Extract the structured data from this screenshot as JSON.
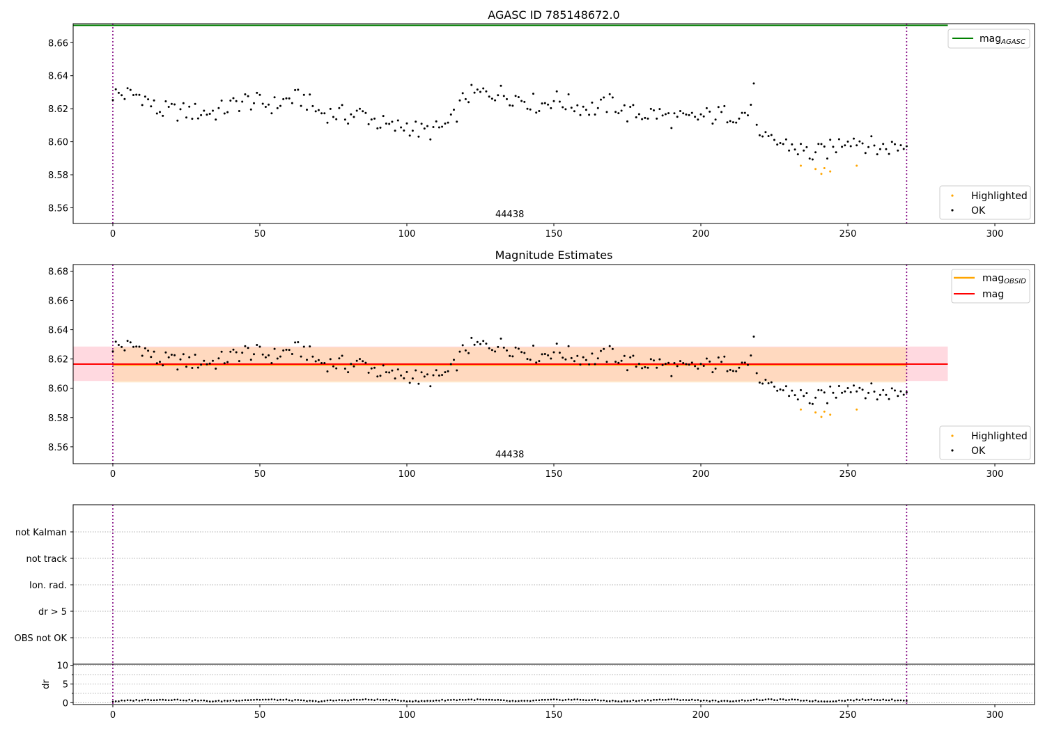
{
  "chart_data": [
    {
      "type": "scatter",
      "title": "AGASC ID 785148672.0",
      "xlim": [
        -13.5,
        313.5
      ],
      "ylim": [
        8.5505,
        8.6715
      ],
      "xticks": [
        0,
        50,
        100,
        150,
        200,
        250,
        300
      ],
      "yticks": [
        8.56,
        8.58,
        8.6,
        8.62,
        8.64,
        8.66
      ],
      "ytick_labels": [
        "8.56",
        "8.58",
        "8.60",
        "8.62",
        "8.64",
        "8.66"
      ],
      "annotation": "44438",
      "annotation_x": 135,
      "vlines": [
        0,
        270
      ],
      "hline": {
        "name": "mag_AGASC",
        "legend_main": "mag",
        "legend_sub": "AGASC",
        "y": 8.6705,
        "x_range": [
          -13.5,
          284
        ],
        "color": "#008000"
      },
      "legend_lines_position": "upper right",
      "legend_points_position": "lower right",
      "series": [
        {
          "name": "Highlighted",
          "color": "#ffa500"
        },
        {
          "name": "OK",
          "color": "#000000"
        }
      ],
      "grid": false
    },
    {
      "type": "scatter",
      "title": "Magnitude Estimates",
      "xlim": [
        -13.5,
        313.5
      ],
      "ylim": [
        8.5485,
        8.6845
      ],
      "xticks": [
        0,
        50,
        100,
        150,
        200,
        250,
        300
      ],
      "yticks": [
        8.56,
        8.58,
        8.6,
        8.62,
        8.64,
        8.66,
        8.68
      ],
      "ytick_labels": [
        "8.56",
        "8.58",
        "8.60",
        "8.62",
        "8.64",
        "8.66",
        "8.68"
      ],
      "annotation": "44438",
      "annotation_x": 135,
      "vlines": [
        0,
        270
      ],
      "mag_obsid": {
        "legend_main": "mag",
        "legend_sub": "OBSID",
        "y": 8.616,
        "band": [
          8.604,
          8.628
        ],
        "x_range": [
          0,
          270
        ],
        "color": "#ffa500"
      },
      "mag": {
        "legend_main": "mag",
        "y": 8.6165,
        "band": [
          8.605,
          8.6285
        ],
        "x_range": [
          -13.5,
          284
        ],
        "color": "#ff0000"
      },
      "legend_lines_position": "upper right",
      "legend_points_position": "lower right",
      "series": [
        {
          "name": "Highlighted",
          "color": "#ffa500"
        },
        {
          "name": "OK",
          "color": "#000000"
        }
      ],
      "grid": false
    },
    {
      "type": "scatter",
      "title": "",
      "xlim": [
        -13.5,
        313.5
      ],
      "categories": [
        "OBS not OK",
        "dr > 5",
        "Ion. rad.",
        "not track",
        "not Kalman"
      ],
      "vlines": [
        0,
        270
      ],
      "grid": true
    },
    {
      "type": "scatter",
      "title": "",
      "ylabel": "dr",
      "xlim": [
        -13.5,
        313.5
      ],
      "ylim": [
        -0.5,
        10.3
      ],
      "xticks": [
        0,
        50,
        100,
        150,
        200,
        250,
        300
      ],
      "yticks": [
        0,
        5,
        10
      ],
      "ytick_labels": [
        "0",
        "5",
        "10"
      ],
      "gridlines_y": [
        0,
        2.5,
        5,
        7.5,
        10
      ],
      "vlines": [
        0,
        270
      ],
      "grid": true
    }
  ],
  "colors": {
    "ok": "#000000",
    "highlighted": "#ffa500",
    "mag_agasc": "#008000",
    "mag": "#ff0000",
    "mag_obsid": "#ffa500",
    "vline": "#800080"
  }
}
